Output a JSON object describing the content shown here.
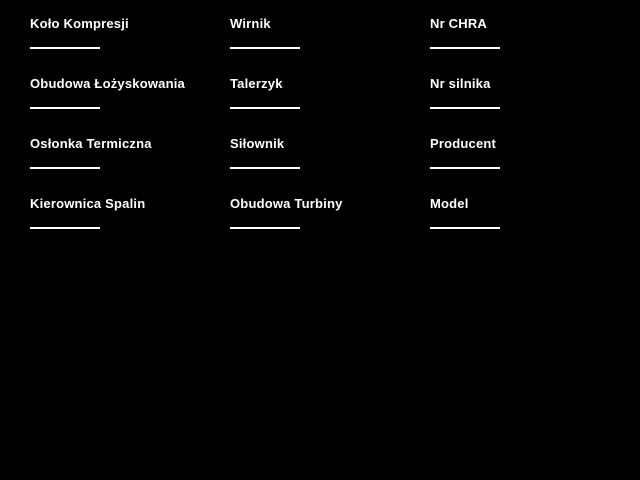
{
  "app": {
    "background_color": "#000000",
    "text_color": "#ffffff",
    "underline_color": "#ffffff"
  },
  "form": {
    "fields": [
      {
        "label": "Koło Kompresji",
        "value": ""
      },
      {
        "label": "Wirnik",
        "value": ""
      },
      {
        "label": "Nr CHRA",
        "value": ""
      },
      {
        "label": "Obudowa Łożyskowania",
        "value": ""
      },
      {
        "label": "Talerzyk",
        "value": ""
      },
      {
        "label": "Nr silnika",
        "value": ""
      },
      {
        "label": "Osłonka Termiczna",
        "value": ""
      },
      {
        "label": "Siłownik",
        "value": ""
      },
      {
        "label": "Producent",
        "value": ""
      },
      {
        "label": "Kierownica Spalin",
        "value": ""
      },
      {
        "label": "Obudowa Turbiny",
        "value": ""
      },
      {
        "label": "Model",
        "value": ""
      }
    ]
  }
}
